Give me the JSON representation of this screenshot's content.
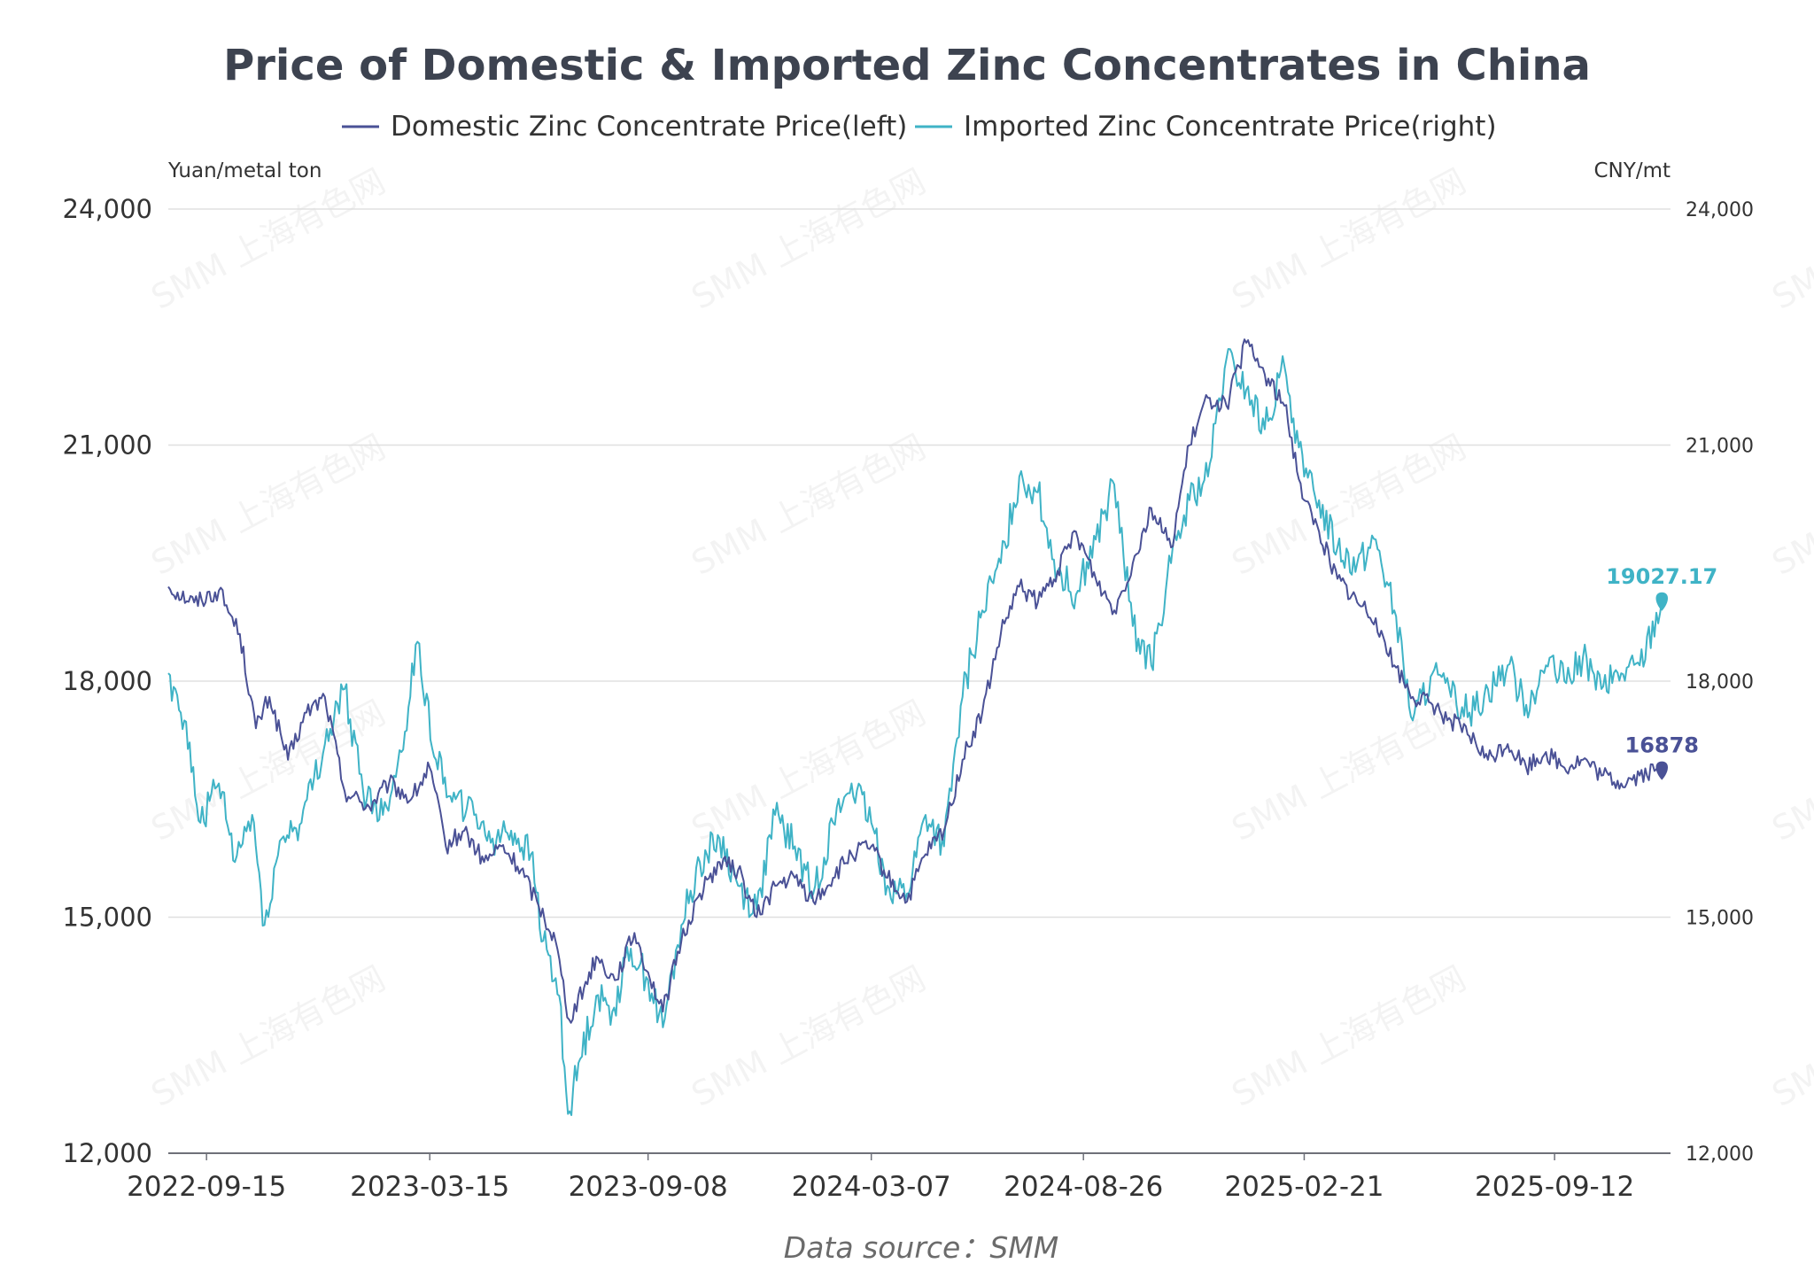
{
  "chart_data": {
    "type": "line",
    "title": "Price of Domestic & Imported Zinc Concentrates in China",
    "y_left_label": "Yuan/metal ton",
    "y_right_label": "CNY/mt",
    "ylim_left": [
      12000,
      24000
    ],
    "ylim_right": [
      12000,
      24000
    ],
    "y_ticks_left": [
      "24,000",
      "21,000",
      "18,000",
      "15,000",
      "12,000"
    ],
    "y_ticks_right": [
      "24,000",
      "21,000",
      "18,000",
      "15,000",
      "12,000"
    ],
    "x_range": [
      "2022-08-15",
      "2025-12-15"
    ],
    "x_tick_labels": [
      "2022-09-15",
      "2023-03-15",
      "2023-09-08",
      "2024-03-07",
      "2024-08-26",
      "2025-02-21",
      "2025-09-12"
    ],
    "grid": true,
    "legend_position": "top",
    "source": "Data source：SMM",
    "watermark": "SMM 上海有色网",
    "series": [
      {
        "name": "Domestic Zinc Concentrate Price(left)",
        "axis": "left",
        "color": "#4a5196",
        "end_label": "16878",
        "anchors": [
          [
            "2022-08-15",
            19200
          ],
          [
            "2022-09-05",
            19000
          ],
          [
            "2022-09-25",
            19150
          ],
          [
            "2022-10-12",
            18600
          ],
          [
            "2022-10-25",
            17400
          ],
          [
            "2022-11-05",
            17800
          ],
          [
            "2022-11-20",
            17000
          ],
          [
            "2022-12-05",
            17600
          ],
          [
            "2022-12-20",
            17800
          ],
          [
            "2023-01-05",
            16600
          ],
          [
            "2023-01-25",
            16400
          ],
          [
            "2023-02-10",
            16700
          ],
          [
            "2023-02-28",
            16500
          ],
          [
            "2023-03-15",
            16900
          ],
          [
            "2023-03-28",
            15900
          ],
          [
            "2023-04-12",
            16100
          ],
          [
            "2023-04-28",
            15700
          ],
          [
            "2023-05-12",
            15900
          ],
          [
            "2023-05-28",
            15600
          ],
          [
            "2023-06-10",
            15200
          ],
          [
            "2023-06-25",
            14700
          ],
          [
            "2023-07-06",
            13700
          ],
          [
            "2023-07-18",
            14100
          ],
          [
            "2023-07-28",
            14500
          ],
          [
            "2023-08-12",
            14200
          ],
          [
            "2023-08-28",
            14800
          ],
          [
            "2023-09-08",
            14300
          ],
          [
            "2023-09-20",
            13800
          ],
          [
            "2023-10-05",
            14700
          ],
          [
            "2023-10-20",
            15300
          ],
          [
            "2023-11-05",
            15700
          ],
          [
            "2023-11-20",
            15600
          ],
          [
            "2023-12-05",
            15000
          ],
          [
            "2023-12-20",
            15400
          ],
          [
            "2024-01-05",
            15500
          ],
          [
            "2024-01-20",
            15200
          ],
          [
            "2024-02-05",
            15500
          ],
          [
            "2024-02-20",
            15800
          ],
          [
            "2024-03-07",
            15900
          ],
          [
            "2024-03-20",
            15500
          ],
          [
            "2024-04-05",
            15200
          ],
          [
            "2024-04-20",
            15800
          ],
          [
            "2024-05-05",
            16100
          ],
          [
            "2024-05-20",
            17000
          ],
          [
            "2024-06-05",
            17600
          ],
          [
            "2024-06-20",
            18600
          ],
          [
            "2024-07-05",
            19200
          ],
          [
            "2024-07-20",
            19000
          ],
          [
            "2024-08-05",
            19400
          ],
          [
            "2024-08-20",
            19900
          ],
          [
            "2024-09-05",
            19300
          ],
          [
            "2024-09-20",
            18900
          ],
          [
            "2024-10-05",
            19500
          ],
          [
            "2024-10-20",
            20200
          ],
          [
            "2024-11-05",
            19700
          ],
          [
            "2024-11-20",
            21000
          ],
          [
            "2024-12-05",
            21600
          ],
          [
            "2024-12-20",
            21500
          ],
          [
            "2025-01-05",
            22300
          ],
          [
            "2025-01-20",
            21900
          ],
          [
            "2025-02-05",
            21500
          ],
          [
            "2025-02-21",
            20300
          ],
          [
            "2025-03-05",
            19900
          ],
          [
            "2025-03-20",
            19300
          ],
          [
            "2025-04-05",
            19000
          ],
          [
            "2025-04-20",
            18800
          ],
          [
            "2025-05-05",
            18200
          ],
          [
            "2025-05-20",
            17800
          ],
          [
            "2025-06-05",
            17700
          ],
          [
            "2025-06-20",
            17500
          ],
          [
            "2025-07-05",
            17300
          ],
          [
            "2025-07-20",
            17000
          ],
          [
            "2025-08-05",
            17200
          ],
          [
            "2025-08-20",
            16900
          ],
          [
            "2025-09-05",
            17100
          ],
          [
            "2025-09-20",
            16900
          ],
          [
            "2025-10-05",
            17000
          ],
          [
            "2025-10-20",
            16800
          ],
          [
            "2025-11-05",
            16700
          ],
          [
            "2025-11-20",
            16800
          ],
          [
            "2025-12-08",
            16878
          ]
        ]
      },
      {
        "name": "Imported Zinc Concentrate Price(right)",
        "axis": "right",
        "color": "#3fb3c6",
        "end_label": "19027.17",
        "anchors": [
          [
            "2022-08-15",
            18100
          ],
          [
            "2022-08-28",
            17500
          ],
          [
            "2022-09-10",
            16200
          ],
          [
            "2022-09-25",
            16700
          ],
          [
            "2022-10-08",
            15700
          ],
          [
            "2022-10-22",
            16300
          ],
          [
            "2022-11-01",
            14900
          ],
          [
            "2022-11-15",
            16000
          ],
          [
            "2022-12-01",
            16200
          ],
          [
            "2022-12-20",
            17200
          ],
          [
            "2023-01-05",
            17900
          ],
          [
            "2023-01-20",
            16600
          ],
          [
            "2023-02-05",
            16300
          ],
          [
            "2023-02-20",
            17100
          ],
          [
            "2023-03-05",
            18500
          ],
          [
            "2023-03-20",
            17000
          ],
          [
            "2023-04-05",
            16500
          ],
          [
            "2023-04-20",
            16300
          ],
          [
            "2023-05-05",
            16000
          ],
          [
            "2023-05-20",
            16100
          ],
          [
            "2023-06-05",
            15800
          ],
          [
            "2023-06-15",
            14700
          ],
          [
            "2023-06-28",
            14000
          ],
          [
            "2023-07-05",
            12500
          ],
          [
            "2023-07-15",
            13200
          ],
          [
            "2023-07-28",
            14000
          ],
          [
            "2023-08-10",
            13800
          ],
          [
            "2023-08-25",
            14600
          ],
          [
            "2023-09-08",
            14200
          ],
          [
            "2023-09-20",
            13600
          ],
          [
            "2023-10-05",
            14900
          ],
          [
            "2023-10-20",
            15700
          ],
          [
            "2023-11-05",
            16000
          ],
          [
            "2023-11-20",
            15400
          ],
          [
            "2023-12-05",
            15100
          ],
          [
            "2023-12-20",
            16300
          ],
          [
            "2024-01-05",
            15900
          ],
          [
            "2024-01-20",
            15300
          ],
          [
            "2024-02-05",
            16200
          ],
          [
            "2024-02-20",
            16700
          ],
          [
            "2024-03-07",
            16200
          ],
          [
            "2024-03-20",
            15400
          ],
          [
            "2024-04-05",
            15300
          ],
          [
            "2024-04-20",
            16300
          ],
          [
            "2024-05-05",
            15900
          ],
          [
            "2024-05-20",
            17800
          ],
          [
            "2024-06-05",
            18900
          ],
          [
            "2024-06-20",
            19500
          ],
          [
            "2024-07-05",
            20600
          ],
          [
            "2024-07-20",
            20400
          ],
          [
            "2024-08-05",
            19400
          ],
          [
            "2024-08-20",
            19100
          ],
          [
            "2024-09-05",
            19800
          ],
          [
            "2024-09-20",
            20500
          ],
          [
            "2024-10-05",
            18700
          ],
          [
            "2024-10-20",
            18200
          ],
          [
            "2024-11-05",
            19500
          ],
          [
            "2024-11-20",
            20300
          ],
          [
            "2024-12-05",
            20600
          ],
          [
            "2024-12-20",
            22100
          ],
          [
            "2025-01-05",
            21700
          ],
          [
            "2025-01-20",
            21200
          ],
          [
            "2025-02-05",
            22000
          ],
          [
            "2025-02-21",
            20600
          ],
          [
            "2025-03-05",
            20300
          ],
          [
            "2025-03-20",
            19700
          ],
          [
            "2025-04-05",
            19500
          ],
          [
            "2025-04-20",
            19800
          ],
          [
            "2025-05-05",
            18900
          ],
          [
            "2025-05-20",
            17500
          ],
          [
            "2025-06-05",
            18100
          ],
          [
            "2025-06-20",
            17800
          ],
          [
            "2025-07-05",
            17600
          ],
          [
            "2025-07-20",
            17900
          ],
          [
            "2025-08-05",
            18200
          ],
          [
            "2025-08-20",
            17700
          ],
          [
            "2025-09-05",
            18200
          ],
          [
            "2025-09-20",
            18000
          ],
          [
            "2025-10-05",
            18300
          ],
          [
            "2025-10-20",
            17900
          ],
          [
            "2025-11-05",
            18100
          ],
          [
            "2025-11-20",
            18200
          ],
          [
            "2025-12-08",
            19027.17
          ]
        ]
      }
    ]
  }
}
